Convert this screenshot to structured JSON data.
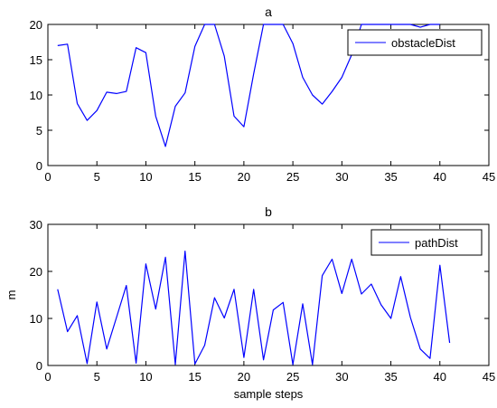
{
  "chart_data": [
    {
      "type": "line",
      "title": "a",
      "xlabel": "",
      "ylabel": "",
      "xlim": [
        0,
        45
      ],
      "ylim": [
        0,
        20
      ],
      "xticks": [
        0,
        5,
        10,
        15,
        20,
        25,
        30,
        35,
        40,
        45
      ],
      "yticks": [
        0,
        5,
        10,
        15,
        20
      ],
      "grid": false,
      "legend_position": "top-right",
      "line_color": "#0000ff",
      "series": [
        {
          "name": "obstacleDist",
          "x": [
            1,
            2,
            3,
            4,
            5,
            6,
            7,
            8,
            9,
            10,
            11,
            12,
            13,
            14,
            15,
            16,
            17,
            18,
            19,
            20,
            21,
            22,
            23,
            24,
            25,
            26,
            27,
            28,
            29,
            30,
            31,
            32,
            33,
            34,
            35,
            36,
            37,
            38,
            39,
            40
          ],
          "y": [
            17.0,
            17.2,
            8.8,
            6.4,
            7.8,
            10.4,
            10.2,
            10.5,
            16.7,
            16.0,
            7.0,
            2.7,
            8.4,
            10.3,
            16.9,
            20.0,
            20.0,
            15.5,
            7.0,
            5.5,
            13.0,
            20.0,
            20.0,
            20.0,
            17.3,
            12.5,
            10.0,
            8.7,
            10.5,
            12.5,
            15.7,
            20.0,
            20.0,
            20.0,
            20.0,
            20.0,
            20.0,
            19.6,
            20.0,
            20.0
          ]
        }
      ]
    },
    {
      "type": "line",
      "title": "b",
      "xlabel": "sample steps",
      "ylabel": "m",
      "xlim": [
        0,
        45
      ],
      "ylim": [
        0,
        30
      ],
      "xticks": [
        0,
        5,
        10,
        15,
        20,
        25,
        30,
        35,
        40,
        45
      ],
      "yticks": [
        0,
        10,
        20,
        30
      ],
      "grid": false,
      "legend_position": "top-right",
      "line_color": "#0000ff",
      "series": [
        {
          "name": "pathDist",
          "x": [
            1,
            2,
            3,
            4,
            5,
            6,
            7,
            8,
            9,
            10,
            11,
            12,
            13,
            14,
            15,
            16,
            17,
            18,
            19,
            20,
            21,
            22,
            23,
            24,
            25,
            26,
            27,
            28,
            29,
            30,
            31,
            32,
            33,
            34,
            35,
            36,
            37,
            38,
            39,
            40,
            41
          ],
          "y": [
            16.2,
            7.2,
            10.6,
            0.4,
            13.5,
            3.5,
            10.2,
            17.0,
            0.5,
            21.6,
            12.0,
            23.0,
            0.2,
            24.3,
            0.3,
            4.3,
            14.4,
            10.1,
            16.2,
            1.7,
            16.2,
            1.2,
            11.8,
            13.4,
            0.2,
            13.1,
            0.2,
            19.1,
            22.6,
            15.3,
            22.6,
            15.2,
            17.3,
            12.9,
            10.0,
            18.9,
            10.2,
            3.5,
            1.5,
            21.3,
            4.8
          ]
        }
      ]
    }
  ]
}
